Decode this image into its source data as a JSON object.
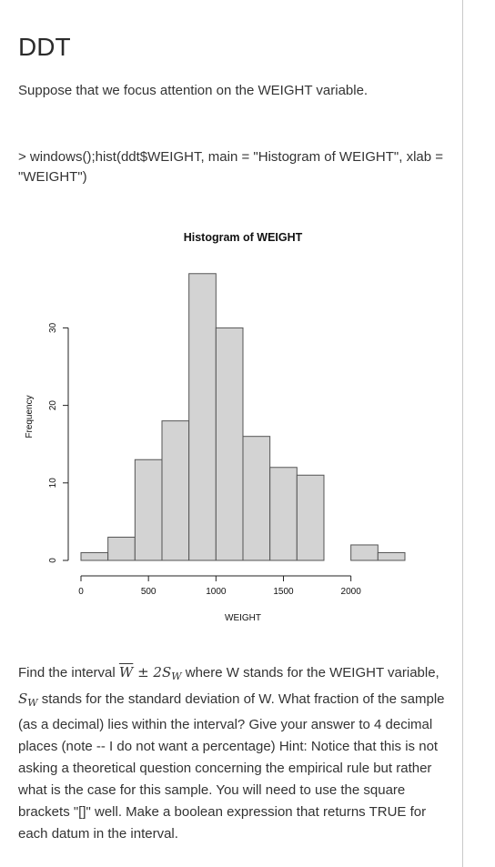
{
  "page": {
    "title": "DDT",
    "intro": "Suppose that we focus attention on the WEIGHT variable.",
    "code": "> windows();hist(ddt$WEIGHT, main = \"Histogram of WEIGHT\", xlab = \"WEIGHT\")"
  },
  "question": {
    "part1": "Find the interval ",
    "math_W": "W",
    "math_pm": " ± 2",
    "math_S": "S",
    "math_Wsub": "W",
    "part2": " where W stands for the WEIGHT variable, ",
    "part3": "stands for the standard deviation of W. What fraction of the sample (as a decimal) lies within the interval? Give your answer to 4 decimal places (note -- I do not want a percentage) Hint: Notice that this is not asking a theoretical question concerning the empirical rule but rather what is the case for this sample. You will need to use the square brackets \"[]\" well. Make a boolean expression that returns TRUE for each datum in the interval."
  },
  "chart_data": {
    "type": "bar",
    "title": "Histogram of WEIGHT",
    "xlabel": "WEIGHT",
    "ylabel": "Frequency",
    "bin_edges": [
      0,
      200,
      400,
      600,
      800,
      1000,
      1200,
      1400,
      1600,
      1800,
      2000,
      2200,
      2400
    ],
    "values": [
      1,
      3,
      13,
      18,
      37,
      30,
      16,
      12,
      11,
      0,
      2,
      1
    ],
    "x_ticks": [
      0,
      500,
      1000,
      1500,
      2000
    ],
    "y_ticks": [
      0,
      10,
      20,
      30
    ],
    "xlim": [
      0,
      2400
    ],
    "ylim": [
      0,
      38
    ],
    "bar_fill": "#d3d3d3",
    "bar_stroke": "#555555",
    "grid": false
  }
}
